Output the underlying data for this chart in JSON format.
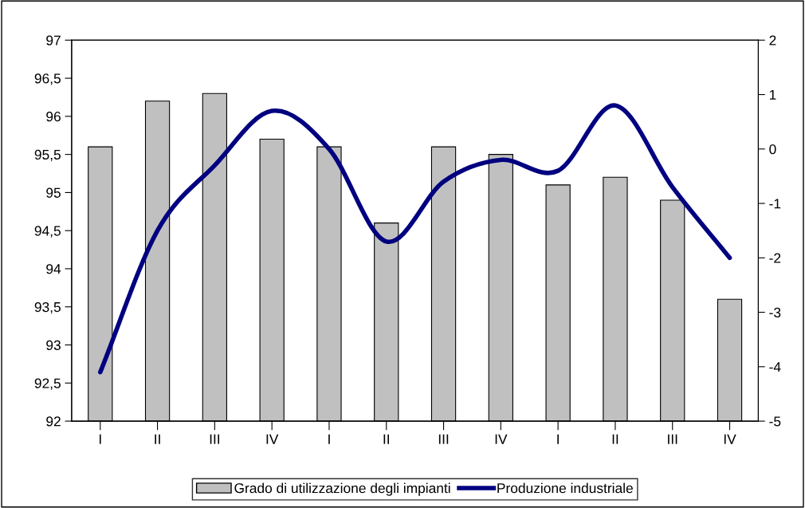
{
  "chart_data": {
    "type": "bar",
    "categories": [
      "I",
      "II",
      "III",
      "IV",
      "I",
      "II",
      "III",
      "IV",
      "I",
      "II",
      "III",
      "IV"
    ],
    "series": [
      {
        "name": "Grado di utilizzazione degli impianti",
        "color": "#c0c0c0",
        "values": [
          95.6,
          96.2,
          96.3,
          95.7,
          95.6,
          94.6,
          95.6,
          95.5,
          95.1,
          95.2,
          94.9,
          93.6
        ]
      },
      {
        "name": "Produzione industriale",
        "type": "line",
        "axis": "y2",
        "color": "#000080",
        "values": [
          -4.1,
          -1.5,
          -0.3,
          0.7,
          0.0,
          -1.7,
          -0.6,
          -0.2,
          -0.4,
          0.8,
          -0.7,
          -2.0
        ]
      }
    ],
    "ylim": [
      92,
      97
    ],
    "yticks": [
      92,
      {
        "value": 92.5,
        "label": "92,5"
      },
      93,
      {
        "value": 93.5,
        "label": "93,5"
      },
      94,
      {
        "value": 94.5,
        "label": "94,5"
      },
      95,
      {
        "value": 95.5,
        "label": "95,5"
      },
      96,
      {
        "value": 96.5,
        "label": "96,5"
      },
      97
    ],
    "y2lim": [
      -5,
      2
    ],
    "y2ticks": [
      -5,
      -4,
      -3,
      -2,
      -1,
      0,
      1,
      2
    ],
    "grid": false,
    "legend": "bottom",
    "marker": "none",
    "line_style": "solid"
  }
}
